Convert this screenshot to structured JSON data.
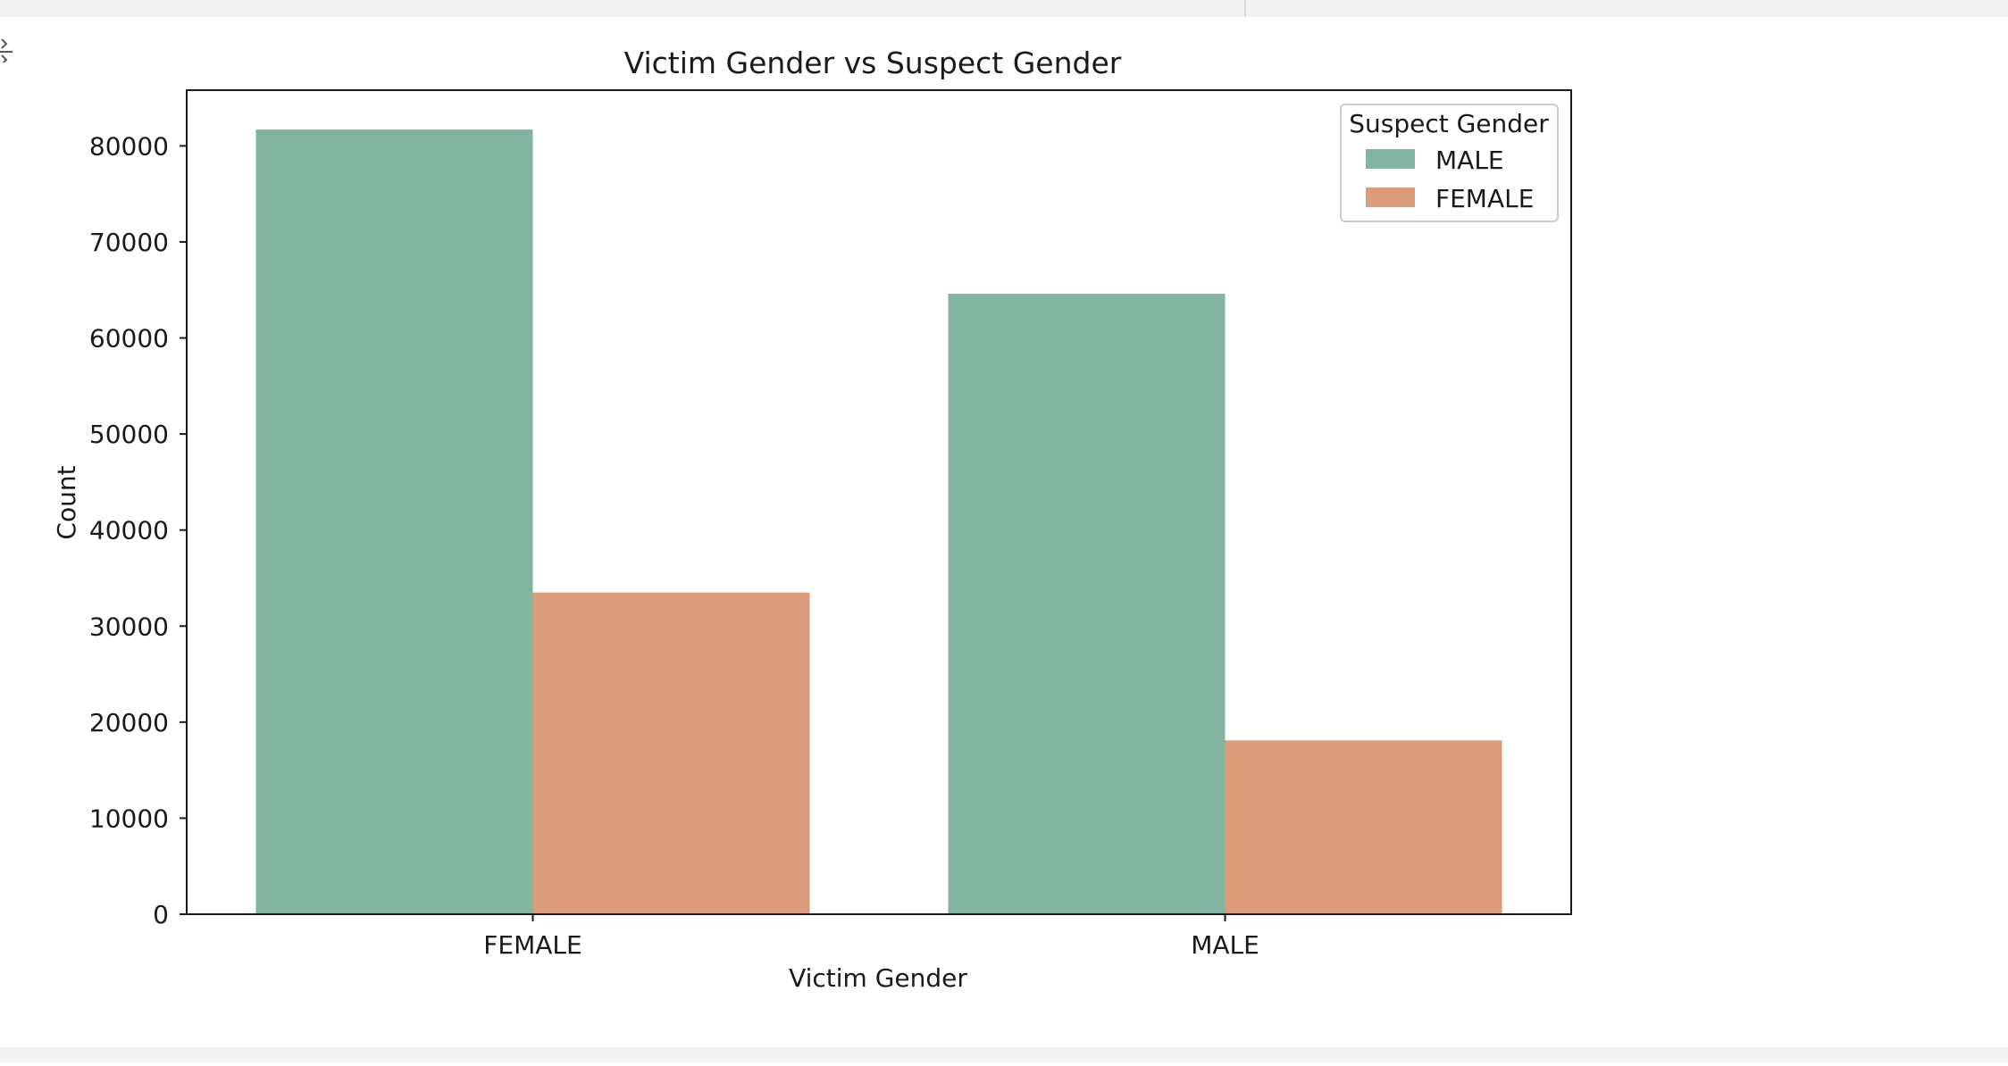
{
  "chart_data": {
    "type": "bar",
    "title": "Victim Gender vs Suspect Gender",
    "xlabel": "Victim Gender",
    "ylabel": "Count",
    "categories": [
      "FEMALE",
      "MALE"
    ],
    "series": [
      {
        "name": "MALE",
        "color": "#82b4a0",
        "values": [
          81700,
          64600
        ]
      },
      {
        "name": "FEMALE",
        "color": "#dc9b7b",
        "values": [
          33500,
          18100
        ]
      }
    ],
    "ylim": [
      0,
      85800
    ],
    "yticks": [
      0,
      10000,
      20000,
      30000,
      40000,
      50000,
      60000,
      70000,
      80000
    ],
    "legend": {
      "title": "Suspect Gender",
      "placement": "top-right"
    },
    "grid": false
  }
}
